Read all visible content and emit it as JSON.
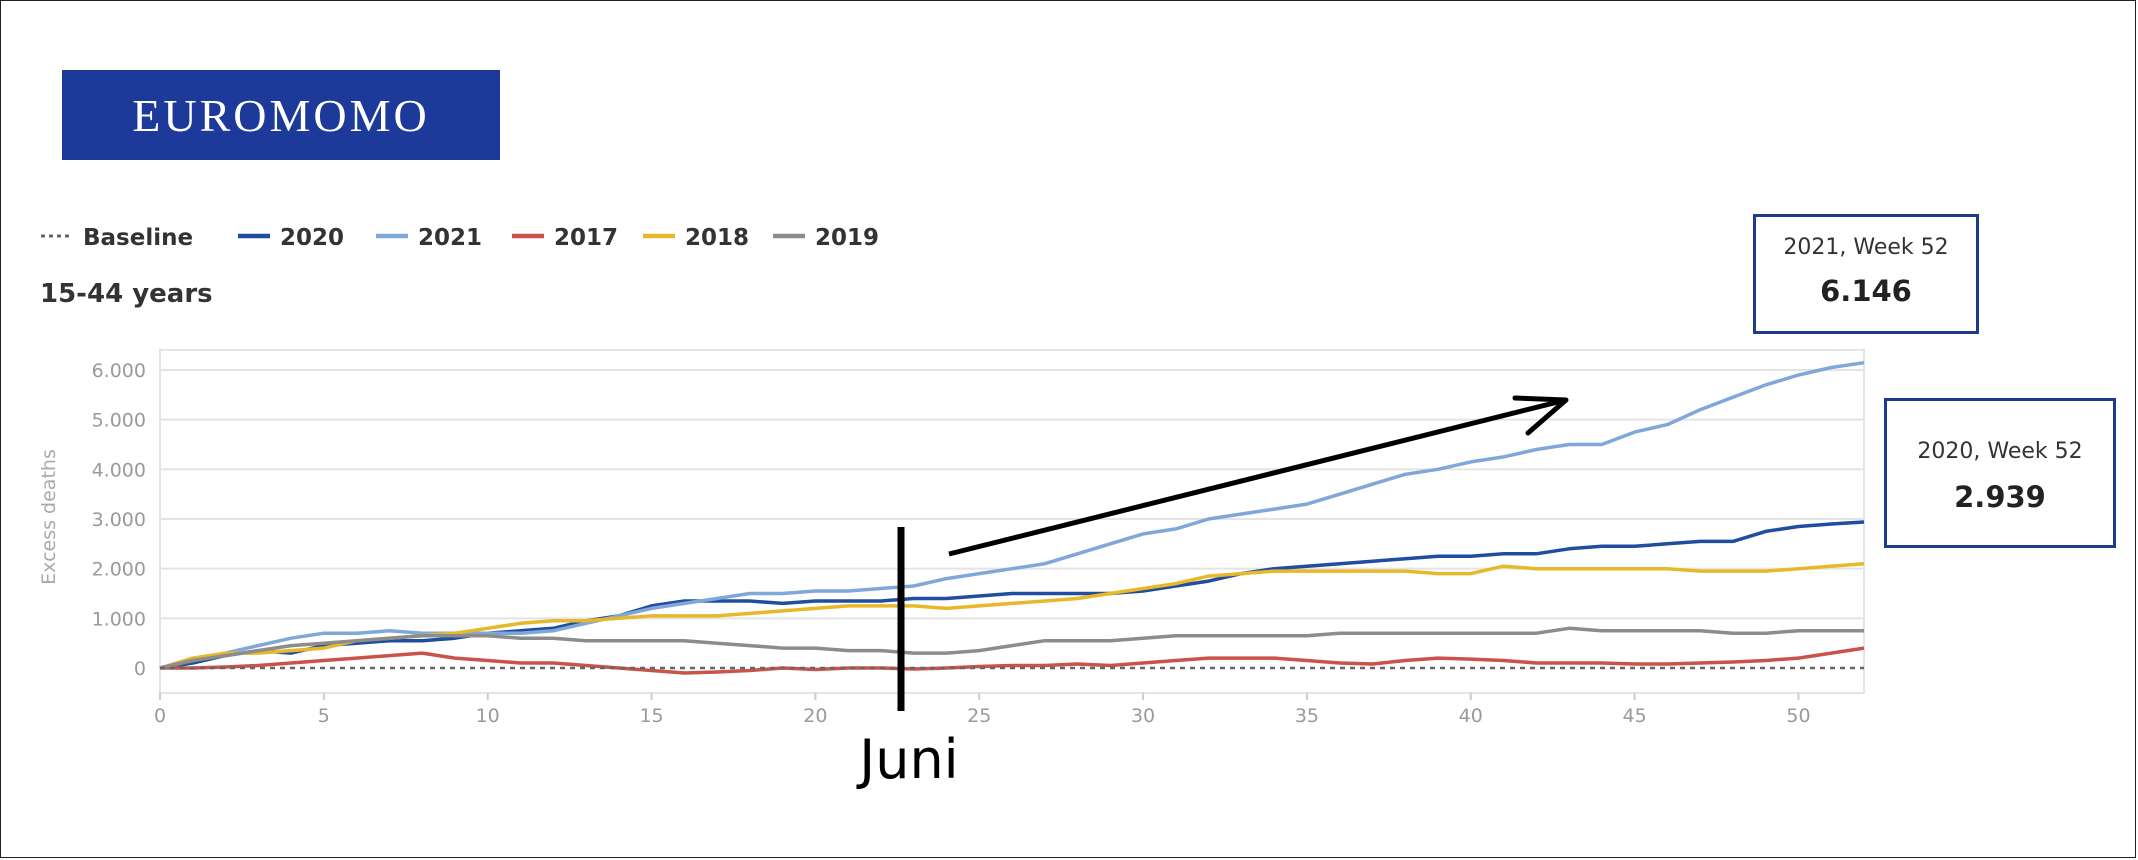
{
  "logo": {
    "text": "EUROMOMO"
  },
  "annotation": {
    "label": "Juni"
  },
  "tooltips": [
    {
      "label": "2021, Week 52",
      "value": "6.146"
    },
    {
      "label": "2020, Week 52",
      "value": "2.939"
    }
  ],
  "chart_data": {
    "type": "line",
    "subtitle": "15-44 years",
    "ylabel": "Excess deaths",
    "xlabel": "",
    "xlim": [
      0,
      52
    ],
    "ylim": [
      -700,
      6500
    ],
    "xticks": [
      0,
      5,
      10,
      15,
      20,
      25,
      30,
      35,
      40,
      45,
      50
    ],
    "yticks": [
      0,
      1000,
      2000,
      3000,
      4000,
      5000,
      6000
    ],
    "ytick_labels": [
      "0",
      "1.000",
      "2.000",
      "3.000",
      "4.000",
      "5.000",
      "6.000"
    ],
    "grid": true,
    "legend_position": "top-left",
    "series": [
      {
        "name": "Baseline",
        "color": "#666666",
        "dashed": true,
        "x": [
          0,
          52
        ],
        "y": [
          0,
          0
        ]
      },
      {
        "name": "2020",
        "color": "#1f4e9e",
        "x": [
          0,
          1,
          2,
          3,
          4,
          5,
          6,
          7,
          8,
          9,
          10,
          11,
          12,
          13,
          14,
          15,
          16,
          17,
          18,
          19,
          20,
          21,
          22,
          23,
          24,
          25,
          26,
          27,
          28,
          29,
          30,
          31,
          32,
          33,
          34,
          35,
          36,
          37,
          38,
          39,
          40,
          41,
          42,
          43,
          44,
          45,
          46,
          47,
          48,
          49,
          50,
          51,
          52
        ],
        "y": [
          0,
          100,
          250,
          350,
          300,
          450,
          500,
          550,
          550,
          600,
          700,
          750,
          800,
          950,
          1050,
          1250,
          1350,
          1350,
          1350,
          1300,
          1350,
          1350,
          1350,
          1400,
          1400,
          1450,
          1500,
          1500,
          1500,
          1500,
          1550,
          1650,
          1750,
          1900,
          2000,
          2050,
          2100,
          2150,
          2200,
          2250,
          2250,
          2300,
          2300,
          2400,
          2450,
          2450,
          2500,
          2550,
          2550,
          2750,
          2850,
          2900,
          2939
        ]
      },
      {
        "name": "2021",
        "color": "#7fa7d9",
        "x": [
          0,
          1,
          2,
          3,
          4,
          5,
          6,
          7,
          8,
          9,
          10,
          11,
          12,
          13,
          14,
          15,
          16,
          17,
          18,
          19,
          20,
          21,
          22,
          23,
          24,
          25,
          26,
          27,
          28,
          29,
          30,
          31,
          32,
          33,
          34,
          35,
          36,
          37,
          38,
          39,
          40,
          41,
          42,
          43,
          44,
          45,
          46,
          47,
          48,
          49,
          50,
          51,
          52
        ],
        "y": [
          0,
          150,
          300,
          450,
          600,
          700,
          700,
          750,
          700,
          700,
          700,
          700,
          750,
          900,
          1050,
          1200,
          1300,
          1400,
          1500,
          1500,
          1550,
          1550,
          1600,
          1650,
          1800,
          1900,
          2000,
          2100,
          2300,
          2500,
          2700,
          2800,
          3000,
          3100,
          3200,
          3300,
          3500,
          3700,
          3900,
          4000,
          4150,
          4250,
          4400,
          4500,
          4500,
          4750,
          4900,
          5200,
          5450,
          5700,
          5900,
          6050,
          6146
        ]
      },
      {
        "name": "2017",
        "color": "#c9534b",
        "x": [
          0,
          1,
          2,
          3,
          4,
          5,
          6,
          7,
          8,
          9,
          10,
          11,
          12,
          13,
          14,
          15,
          16,
          17,
          18,
          19,
          20,
          21,
          22,
          23,
          24,
          25,
          26,
          27,
          28,
          29,
          30,
          31,
          32,
          33,
          34,
          35,
          36,
          37,
          38,
          39,
          40,
          41,
          42,
          43,
          44,
          45,
          46,
          47,
          48,
          49,
          50,
          51,
          52
        ],
        "y": [
          0,
          0,
          20,
          50,
          100,
          150,
          200,
          250,
          300,
          200,
          150,
          100,
          100,
          50,
          0,
          -50,
          -100,
          -80,
          -50,
          0,
          -30,
          0,
          0,
          -20,
          0,
          30,
          50,
          50,
          80,
          50,
          100,
          150,
          200,
          200,
          200,
          150,
          100,
          80,
          150,
          200,
          180,
          150,
          100,
          100,
          100,
          80,
          80,
          100,
          120,
          150,
          200,
          300,
          400
        ]
      },
      {
        "name": "2018",
        "color": "#e7b92a",
        "x": [
          0,
          1,
          2,
          3,
          4,
          5,
          6,
          7,
          8,
          9,
          10,
          11,
          12,
          13,
          14,
          15,
          16,
          17,
          18,
          19,
          20,
          21,
          22,
          23,
          24,
          25,
          26,
          27,
          28,
          29,
          30,
          31,
          32,
          33,
          34,
          35,
          36,
          37,
          38,
          39,
          40,
          41,
          42,
          43,
          44,
          45,
          46,
          47,
          48,
          49,
          50,
          51,
          52
        ],
        "y": [
          0,
          200,
          300,
          300,
          350,
          400,
          550,
          600,
          650,
          700,
          800,
          900,
          950,
          950,
          1000,
          1050,
          1050,
          1050,
          1100,
          1150,
          1200,
          1250,
          1250,
          1250,
          1200,
          1250,
          1300,
          1350,
          1400,
          1500,
          1600,
          1700,
          1850,
          1900,
          1950,
          1950,
          1950,
          1950,
          1950,
          1900,
          1900,
          2050,
          2000,
          2000,
          2000,
          2000,
          2000,
          1950,
          1950,
          1950,
          2000,
          2050,
          2100
        ]
      },
      {
        "name": "2019",
        "color": "#8c8c8c",
        "x": [
          0,
          1,
          2,
          3,
          4,
          5,
          6,
          7,
          8,
          9,
          10,
          11,
          12,
          13,
          14,
          15,
          16,
          17,
          18,
          19,
          20,
          21,
          22,
          23,
          24,
          25,
          26,
          27,
          28,
          29,
          30,
          31,
          32,
          33,
          34,
          35,
          36,
          37,
          38,
          39,
          40,
          41,
          42,
          43,
          44,
          45,
          46,
          47,
          48,
          49,
          50,
          51,
          52
        ],
        "y": [
          0,
          150,
          250,
          350,
          450,
          500,
          550,
          600,
          650,
          650,
          650,
          600,
          600,
          550,
          550,
          550,
          550,
          500,
          450,
          400,
          400,
          350,
          350,
          300,
          300,
          350,
          450,
          550,
          550,
          550,
          600,
          650,
          650,
          650,
          650,
          650,
          700,
          700,
          700,
          700,
          700,
          700,
          700,
          800,
          750,
          750,
          750,
          750,
          700,
          700,
          750,
          750,
          750
        ]
      }
    ]
  }
}
